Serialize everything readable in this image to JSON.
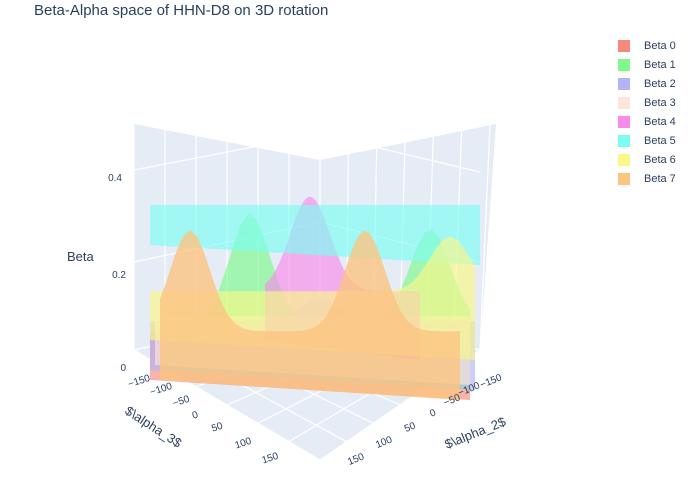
{
  "chart_data": {
    "type": "surface",
    "title": "Beta-Alpha space of HHN-D8 on 3D rotation",
    "xlabel": "$\\alpha_2$",
    "ylabel": "$\\alpha_3$",
    "zlabel": "Beta",
    "x_ticks": [
      "−150",
      "−100",
      "−50",
      "0",
      "50",
      "100",
      "150"
    ],
    "y_ticks": [
      "−150",
      "−100",
      "−50",
      "0",
      "50",
      "100",
      "150"
    ],
    "z_ticks": [
      "0",
      "0.2",
      "0.4"
    ],
    "zlim": [
      0,
      0.5
    ],
    "legend_position": "top-right",
    "series": [
      {
        "name": "Beta 0",
        "color": "#f58a7c",
        "approx_peak": 0.05
      },
      {
        "name": "Beta 1",
        "color": "#7dfa8a",
        "approx_peak": 0.49
      },
      {
        "name": "Beta 2",
        "color": "#b3b3f7",
        "approx_peak": 0.12
      },
      {
        "name": "Beta 3",
        "color": "#fde5dc",
        "approx_peak": 0.1
      },
      {
        "name": "Beta 4",
        "color": "#f78ce8",
        "approx_peak": 0.43
      },
      {
        "name": "Beta 5",
        "color": "#7dfdf2",
        "approx_peak": 0.35
      },
      {
        "name": "Beta 6",
        "color": "#fbf887",
        "approx_peak": 0.25
      },
      {
        "name": "Beta 7",
        "color": "#fbc481",
        "approx_peak": 0.46
      }
    ]
  }
}
